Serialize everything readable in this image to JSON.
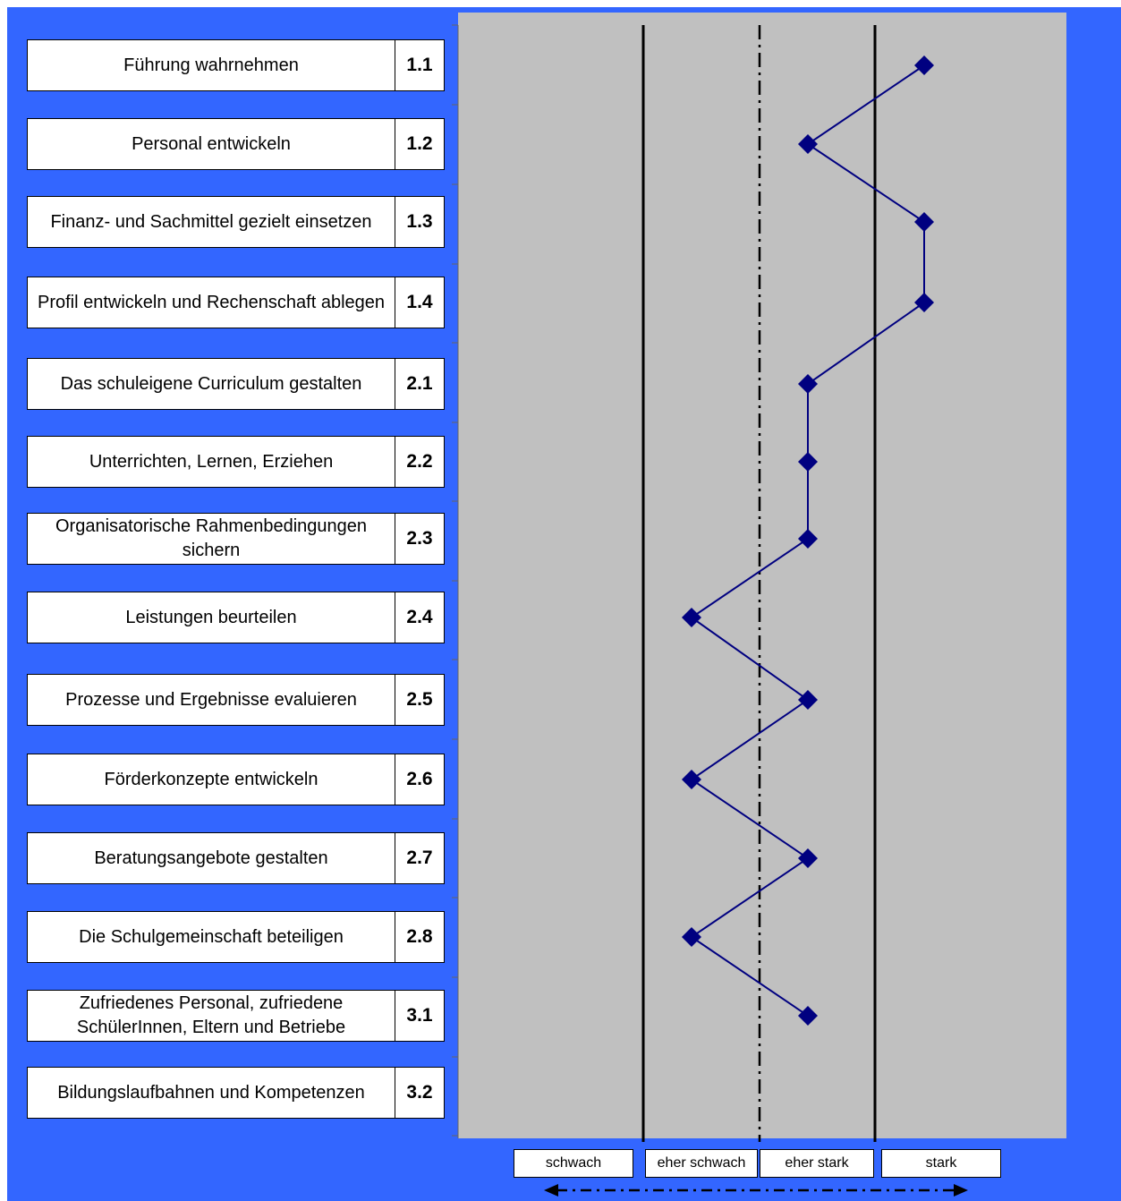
{
  "colors": {
    "background": "#3366ff",
    "plot_area": "#c0c0c0",
    "series": "#000080"
  },
  "chart_data": {
    "type": "line",
    "orientation": "vertical-profile",
    "categories": [
      "1.1",
      "1.2",
      "1.3",
      "1.4",
      "2.1",
      "2.2",
      "2.3",
      "2.4",
      "2.5",
      "2.6",
      "2.7",
      "2.8",
      "3.1",
      "3.2"
    ],
    "labels": [
      "Führung wahrnehmen",
      "Personal entwickeln",
      "Finanz- und Sachmittel gezielt einsetzen",
      "Profil entwickeln und Rechenschaft ablegen",
      "Das schuleigene Curriculum gestalten",
      "Unterrichten, Lernen, Erziehen",
      "Organisatorische Rahmenbedingungen sichern",
      "Leistungen beurteilen",
      "Prozesse und Ergebnisse evaluieren",
      "Förderkonzepte entwickeln",
      "Beratungsangebote gestalten",
      "Die Schulgemeinschaft beteiligen",
      "Zufriedenes Personal, zufriedene SchülerInnen, Eltern und Betriebe",
      "Bildungslaufbahnen und Kompetenzen"
    ],
    "scale": [
      "schwach",
      "eher  schwach",
      "eher stark",
      "stark"
    ],
    "values": [
      4,
      3,
      4,
      4,
      3,
      3,
      3,
      2,
      3,
      2,
      3,
      2,
      3,
      null
    ],
    "xlim": [
      0.5,
      4.5
    ],
    "grid": false,
    "legend": "none"
  }
}
